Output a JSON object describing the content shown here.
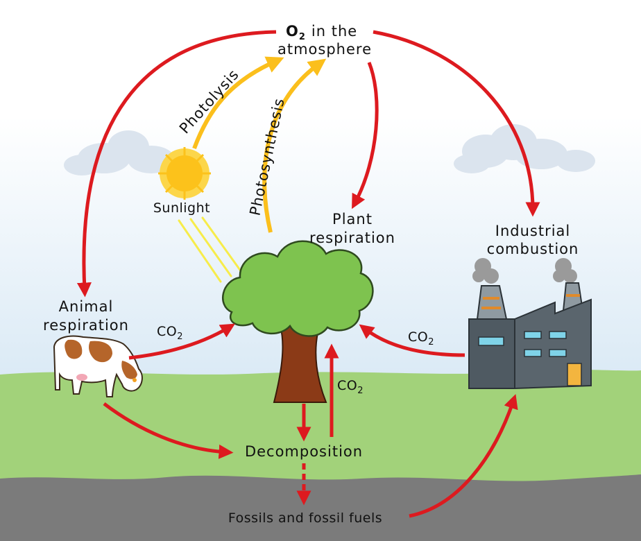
{
  "colors": {
    "cycle_arrow": "#dd1a1f",
    "light_arrow": "#fbbf1c",
    "sky_top": "#ffffff",
    "sky_bottom": "#d8e8f4",
    "grass": "#a2d27a",
    "soil": "#7a7a7a",
    "tree_leaves": "#7ec34f",
    "tree_trunk": "#8b3a17",
    "sun": "#fcc21b",
    "factory": "#4f5a62"
  },
  "labels": {
    "o2_main": "O",
    "o2_sub": "2",
    "o2_rest": "in the",
    "atmosphere": "atmosphere",
    "photolysis": "Photolysis",
    "photosynthesis": "Photosynthesis",
    "sunlight": "Sunlight",
    "plant_line1": "Plant",
    "plant_line2": "respiration",
    "industrial_line1": "Industrial",
    "industrial_line2": "combustion",
    "animal_line1": "Animal",
    "animal_line2": "respiration",
    "co2_left_main": "CO",
    "co2_left_sub": "2",
    "co2_right_main": "CO",
    "co2_right_sub": "2",
    "co2_center_main": "CO",
    "co2_center_sub": "2",
    "decomposition": "Decomposition",
    "fossils": "Fossils and fossil fuels"
  },
  "icons": [
    "sun-icon",
    "cloud-icon",
    "tree-icon",
    "cow-icon",
    "factory-icon",
    "smoke-icon"
  ]
}
